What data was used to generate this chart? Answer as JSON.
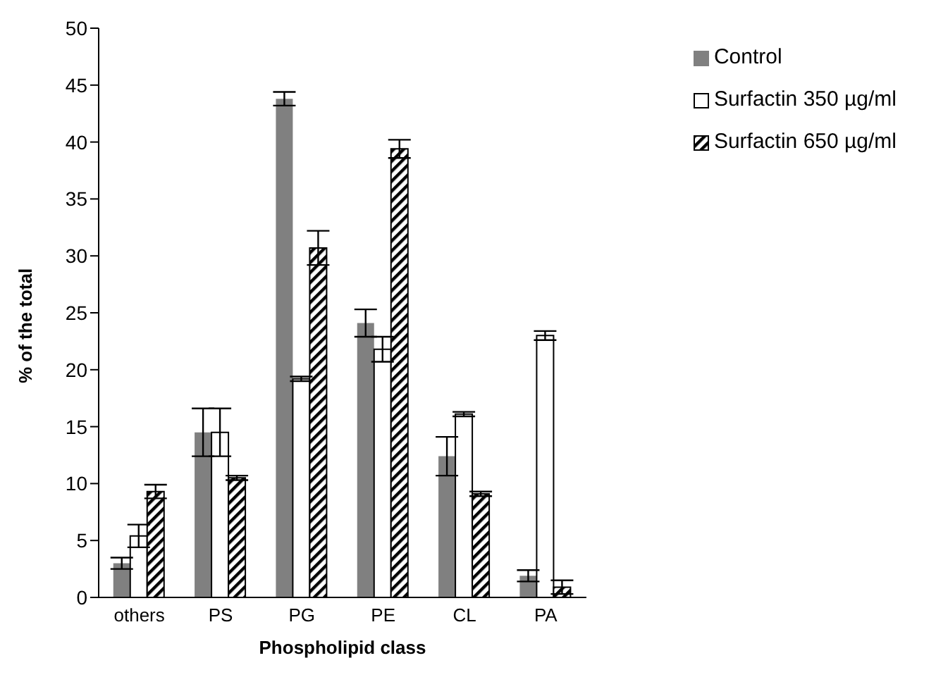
{
  "chart_data": {
    "type": "bar",
    "xlabel": "Phospholipid class",
    "ylabel": "% of the total",
    "categories": [
      "others",
      "PS",
      "PG",
      "PE",
      "CL",
      "PA"
    ],
    "series": [
      {
        "name": "Control",
        "color": "#808080",
        "values": [
          3.0,
          14.5,
          43.8,
          24.1,
          12.4,
          1.9
        ],
        "errors": [
          0.5,
          2.1,
          0.6,
          1.2,
          1.7,
          0.5
        ]
      },
      {
        "name": "Surfactin 350 µg/ml",
        "color": "#ffffff",
        "values": [
          5.4,
          14.5,
          19.2,
          21.8,
          16.1,
          23.0
        ],
        "errors": [
          1.0,
          2.1,
          0.2,
          1.1,
          0.2,
          0.4
        ]
      },
      {
        "name": "Surfactin 650 µg/ml",
        "color": "#000000",
        "type": "bar",
        "values": [
          9.3,
          10.5,
          30.7,
          39.4,
          9.1,
          0.9
        ],
        "errors": [
          0.6,
          0.2,
          1.5,
          0.8,
          0.2,
          0.6
        ]
      }
    ],
    "ylim": [
      0,
      50
    ],
    "yticks": [
      0,
      5,
      10,
      15,
      20,
      25,
      30,
      35,
      40,
      45,
      50
    ],
    "grid": false,
    "legend": "top right"
  }
}
